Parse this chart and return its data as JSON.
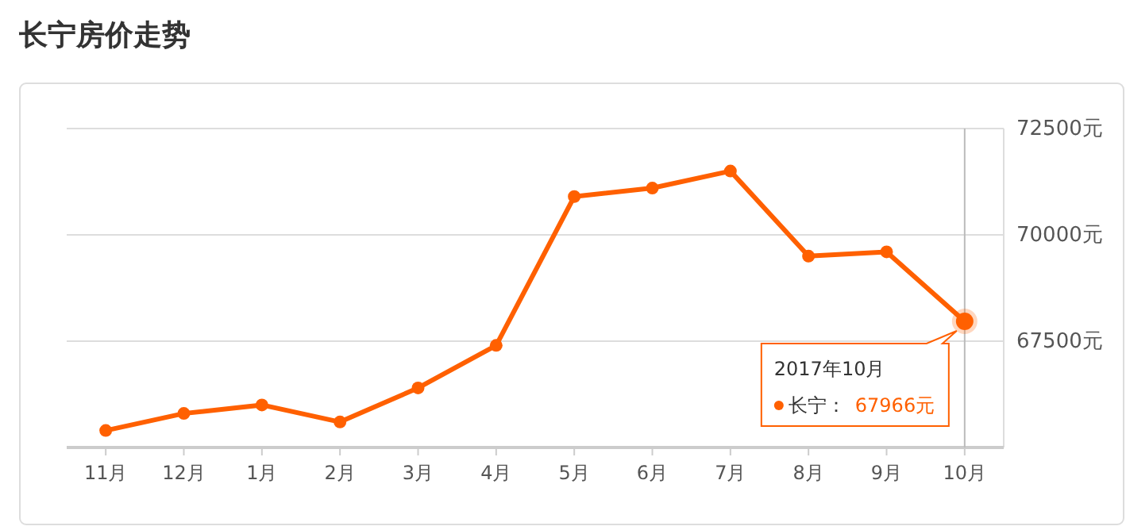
{
  "chart_data": {
    "type": "line",
    "title": "长宁房价走势",
    "categories": [
      "11月",
      "12月",
      "1月",
      "2月",
      "3月",
      "4月",
      "5月",
      "6月",
      "7月",
      "8月",
      "9月",
      "10月"
    ],
    "series": [
      {
        "color": "#ff6000",
        "values": [
          65400,
          65800,
          66000,
          65600,
          66400,
          67400,
          70900,
          71100,
          71500,
          69500,
          69600,
          67966
        ]
      }
    ],
    "ylim": [
      65000,
      72500
    ],
    "yticks": [
      {
        "value": 67500,
        "label": "67500元"
      },
      {
        "value": 70000,
        "label": "70000元"
      },
      {
        "value": 72500,
        "label": "72500元"
      }
    ],
    "ref_lines": [
      {
        "axis": "x",
        "value": "10月",
        "color": "#bbbbbb"
      }
    ],
    "annotations": [
      "2017年10月",
      "长宁：",
      "67966元"
    ],
    "grid": "y",
    "legend": false,
    "marker": "circle",
    "line_style": "solid"
  }
}
